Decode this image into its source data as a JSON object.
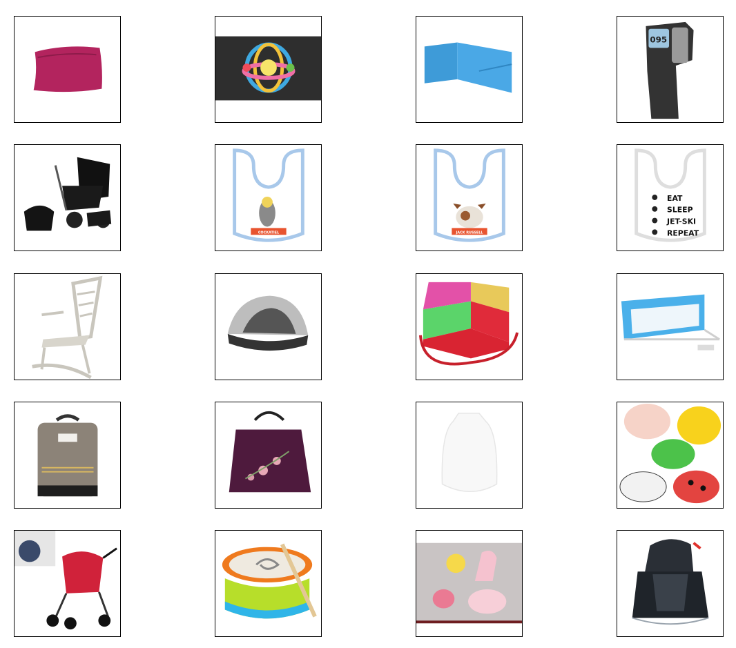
{
  "grid": {
    "rows": 5,
    "cols": 4
  },
  "products": [
    {
      "name": "pillow"
    },
    {
      "name": "rattle-ball"
    },
    {
      "name": "crib-bumper"
    },
    {
      "name": "infrared-thermometer",
      "display": "095"
    },
    {
      "name": "stroller-set"
    },
    {
      "name": "bib-cockatiel",
      "label": "COCKATIEL"
    },
    {
      "name": "bib-jack-russell",
      "label": "JACK RUSSELL"
    },
    {
      "name": "bib-eat-sleep",
      "lines": [
        "EAT",
        "SLEEP",
        "JET-SKI",
        "REPEAT"
      ]
    },
    {
      "name": "rocking-chair"
    },
    {
      "name": "travel-cot-tent"
    },
    {
      "name": "booster-seat"
    },
    {
      "name": "bed-rail"
    },
    {
      "name": "backpack-grey"
    },
    {
      "name": "backpack-purple"
    },
    {
      "name": "sleeping-bag"
    },
    {
      "name": "bath-toys"
    },
    {
      "name": "stroller-red"
    },
    {
      "name": "toy-drum"
    },
    {
      "name": "wall-decals"
    },
    {
      "name": "car-seat"
    }
  ]
}
